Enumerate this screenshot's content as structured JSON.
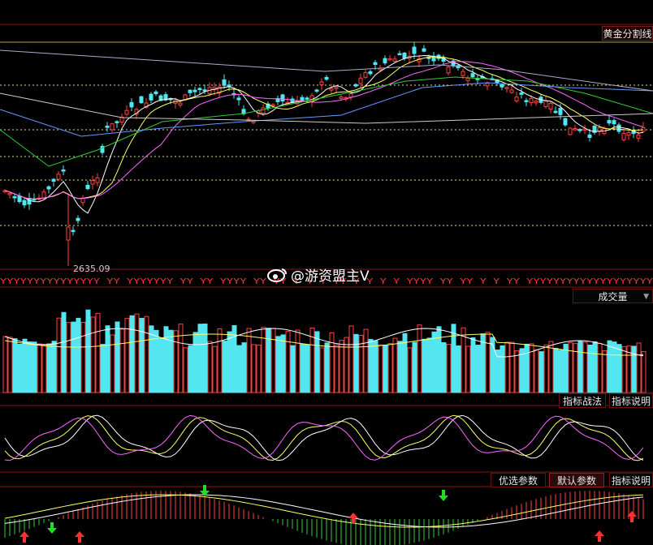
{
  "colors": {
    "background": "#000000",
    "grid_red": "#8b1010",
    "candle_up": "#ff4040",
    "candle_down": "#54e6f0",
    "ma5": "#ffffff",
    "ma10": "#ffff66",
    "ma20": "#ff66ff",
    "ma60": "#33cc33",
    "ma120": "#6699ff",
    "ma250": "#cccccc"
  },
  "toolbar": {
    "golden_split_label": "黄金分割线",
    "volume_select_label": "成交量",
    "indicator_strategy_label": "指标战法",
    "indicator_help_label_1": "指标说明",
    "preferred_params_label": "优选参数",
    "default_params_label": "默认参数",
    "indicator_help_label_2": "指标说明"
  },
  "price_panel": {
    "low_marker_label": "2635.09"
  },
  "watermark": {
    "text": "@游资盟主V"
  },
  "signal_strip": {
    "text": "YYYYYYYYYYYYYYY  YY  YYYYYYY                YY   YY   YYYY                                    YY  YY  Y  Y  Y  YY  Y  Y  Y  Y     YYYY  YY  YY  Y  Y     YY  YYYYYYYYYYYYYYYYYYY"
  },
  "icons": {
    "weibo": "weibo-icon",
    "up_arrow": "red-up-arrow-icon",
    "down_arrow": "green-down-arrow-icon"
  }
}
